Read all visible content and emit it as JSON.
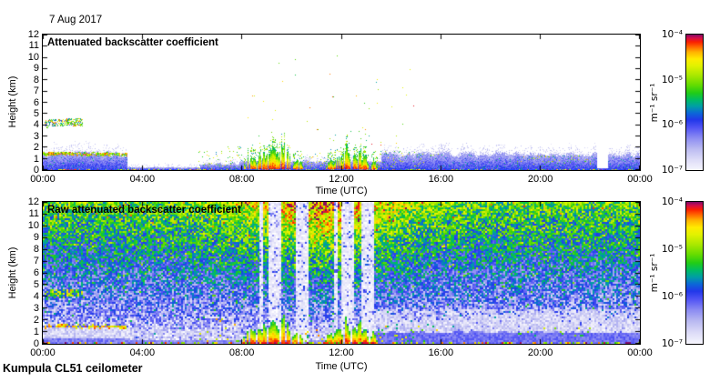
{
  "figure": {
    "date_label": "7 Aug 2017",
    "footer_label": "Kumpula CL51 ceilometer",
    "background_color": "#ffffff",
    "frame_color": "#000000"
  },
  "colormap": [
    {
      "t": 0.0,
      "color": "#f6f5fd"
    },
    {
      "t": 0.08,
      "color": "#dcdbf7"
    },
    {
      "t": 0.16,
      "color": "#b9b9f1"
    },
    {
      "t": 0.24,
      "color": "#8a8af2"
    },
    {
      "t": 0.31,
      "color": "#5456f4"
    },
    {
      "t": 0.37,
      "color": "#2238ea"
    },
    {
      "t": 0.42,
      "color": "#0c66d8"
    },
    {
      "t": 0.47,
      "color": "#009ea6"
    },
    {
      "t": 0.52,
      "color": "#00bc62"
    },
    {
      "t": 0.57,
      "color": "#22cc16"
    },
    {
      "t": 0.63,
      "color": "#66dc00"
    },
    {
      "t": 0.7,
      "color": "#aae800"
    },
    {
      "t": 0.77,
      "color": "#e2f200"
    },
    {
      "t": 0.82,
      "color": "#ffeb00"
    },
    {
      "t": 0.87,
      "color": "#ffb300"
    },
    {
      "t": 0.91,
      "color": "#ff6600"
    },
    {
      "t": 0.945,
      "color": "#fa2000"
    },
    {
      "t": 0.975,
      "color": "#d30c4a"
    },
    {
      "t": 1.0,
      "color": "#7c0b68"
    }
  ],
  "chart_data": [
    {
      "type": "heatmap",
      "title": "Attenuated backscatter coefficient",
      "xlabel": "Time (UTC)",
      "ylabel": "Height (km)",
      "x_ticks": [
        "00:00",
        "04:00",
        "08:00",
        "12:00",
        "16:00",
        "20:00",
        "00:00"
      ],
      "x_range_hours": [
        0,
        24
      ],
      "y_ticks": [
        "12",
        "11",
        "10",
        "9",
        "8",
        "7",
        "6",
        "5",
        "4",
        "3",
        "2",
        "1",
        "0"
      ],
      "y_range_km": [
        0,
        12
      ],
      "grid": false,
      "background": "white (below detection)",
      "colorbar": {
        "unit_label": "m⁻¹ sr⁻¹",
        "tick_labels": [
          "10⁻⁴",
          "10⁻⁵",
          "10⁻⁶",
          "10⁻⁷"
        ],
        "scale": "log10",
        "range": [
          1e-07,
          0.0001
        ]
      },
      "features": {
        "boundary_layer_segments": [
          {
            "hours": [
              0,
              3.4
            ],
            "top_km": 1.55
          },
          {
            "hours": [
              3.4,
              6.3
            ],
            "top_km": 0.3
          },
          {
            "hours": [
              6.3,
              7.9
            ],
            "top_km": 0.6
          },
          {
            "hours": [
              7.9,
              13.6
            ],
            "top_km": 0.85
          },
          {
            "hours": [
              13.6,
              24
            ],
            "top_km": 1.5
          }
        ],
        "boundary_layer_log10_value": -6.3,
        "aerosol_top_line": {
          "hours": [
            0,
            3.4
          ],
          "height_km": 1.45,
          "log10_value": -4.8
        },
        "cloud_layer": {
          "hours": [
            0.05,
            1.6
          ],
          "km": [
            3.85,
            4.5
          ],
          "log10_value": -4.8
        },
        "precip_clusters": [
          {
            "hours": [
              8.05,
              10.45
            ],
            "max_top_km": 2.9,
            "log10_value": -4.3
          },
          {
            "hours": [
              11.35,
              13.45
            ],
            "max_top_km": 2.6,
            "log10_value": -4.3
          }
        ],
        "speck_clusters": [
          {
            "hours": [
              6.2,
              8.0
            ],
            "km": [
              0.1,
              2.1
            ],
            "density": 0.05
          },
          {
            "hours": [
              10.4,
              11.4
            ],
            "km": [
              0.1,
              1.6
            ],
            "density": 0.06
          },
          {
            "hours": [
              13.5,
              15.9
            ],
            "km": [
              0.2,
              1.7
            ],
            "density": 0.05
          },
          {
            "hours": [
              19.0,
              22.0
            ],
            "km": [
              0.55,
              1.35
            ],
            "density": 0.07
          }
        ],
        "high_specks": {
          "hours": [
            8,
            15.3
          ],
          "km": [
            2,
            11.3
          ],
          "density": 0.004
        },
        "clear_gap_hours": [
          22.25,
          22.7
        ]
      }
    },
    {
      "type": "heatmap",
      "title": "Raw attenuated backscatter coefficient",
      "xlabel": "Time (UTC)",
      "ylabel": "Height (km)",
      "x_ticks": [
        "00:00",
        "04:00",
        "08:00",
        "12:00",
        "16:00",
        "20:00",
        "00:00"
      ],
      "x_range_hours": [
        0,
        24
      ],
      "y_ticks": [
        "12",
        "11",
        "10",
        "9",
        "8",
        "7",
        "6",
        "5",
        "4",
        "3",
        "2",
        "1",
        "0"
      ],
      "y_range_km": [
        0,
        12
      ],
      "grid": false,
      "background": "full-field instrument noise",
      "colorbar": {
        "unit_label": "m⁻¹ sr⁻¹",
        "tick_labels": [
          "10⁻⁴",
          "10⁻⁵",
          "10⁻⁶",
          "10⁻⁷"
        ],
        "scale": "log10",
        "range": [
          1e-07,
          0.0001
        ]
      },
      "features": {
        "noise_floor_log10": -6.78,
        "noise_top_log10": -5.15,
        "daytime_boost": {
          "amplitude": 0.8,
          "peak_hour": 11.2,
          "sigma_hours": 3.3
        },
        "attenuation_stripes": [
          {
            "hours": [
              8.7,
              8.85
            ]
          },
          {
            "hours": [
              9.1,
              9.6
            ]
          },
          {
            "hours": [
              10.15,
              10.7
            ]
          },
          {
            "hours": [
              11.7,
              11.85
            ]
          },
          {
            "hours": [
              12.0,
              12.5
            ]
          },
          {
            "hours": [
              12.8,
              13.3
            ]
          }
        ],
        "white_band": {
          "hours": [
            13,
            24
          ],
          "km": [
            0.95,
            2.9
          ]
        },
        "surface_blue_layer": {
          "hours": [
            12.8,
            24
          ],
          "top_km": 0.95,
          "log10_value": -6.15
        },
        "aerosol_top_line": {
          "hours": [
            0,
            3.4
          ],
          "height_km": 1.45,
          "log10_value": -4.8
        },
        "cloud_layer": {
          "hours": [
            0.05,
            1.6
          ],
          "km": [
            3.85,
            4.5
          ],
          "log10_value": -5.0
        },
        "precip_clusters": [
          {
            "hours": [
              8.05,
              10.45
            ],
            "max_top_km": 2.9,
            "log10_value": -4.3
          },
          {
            "hours": [
              11.35,
              13.45
            ],
            "max_top_km": 2.6,
            "log10_value": -4.3
          }
        ]
      }
    }
  ]
}
